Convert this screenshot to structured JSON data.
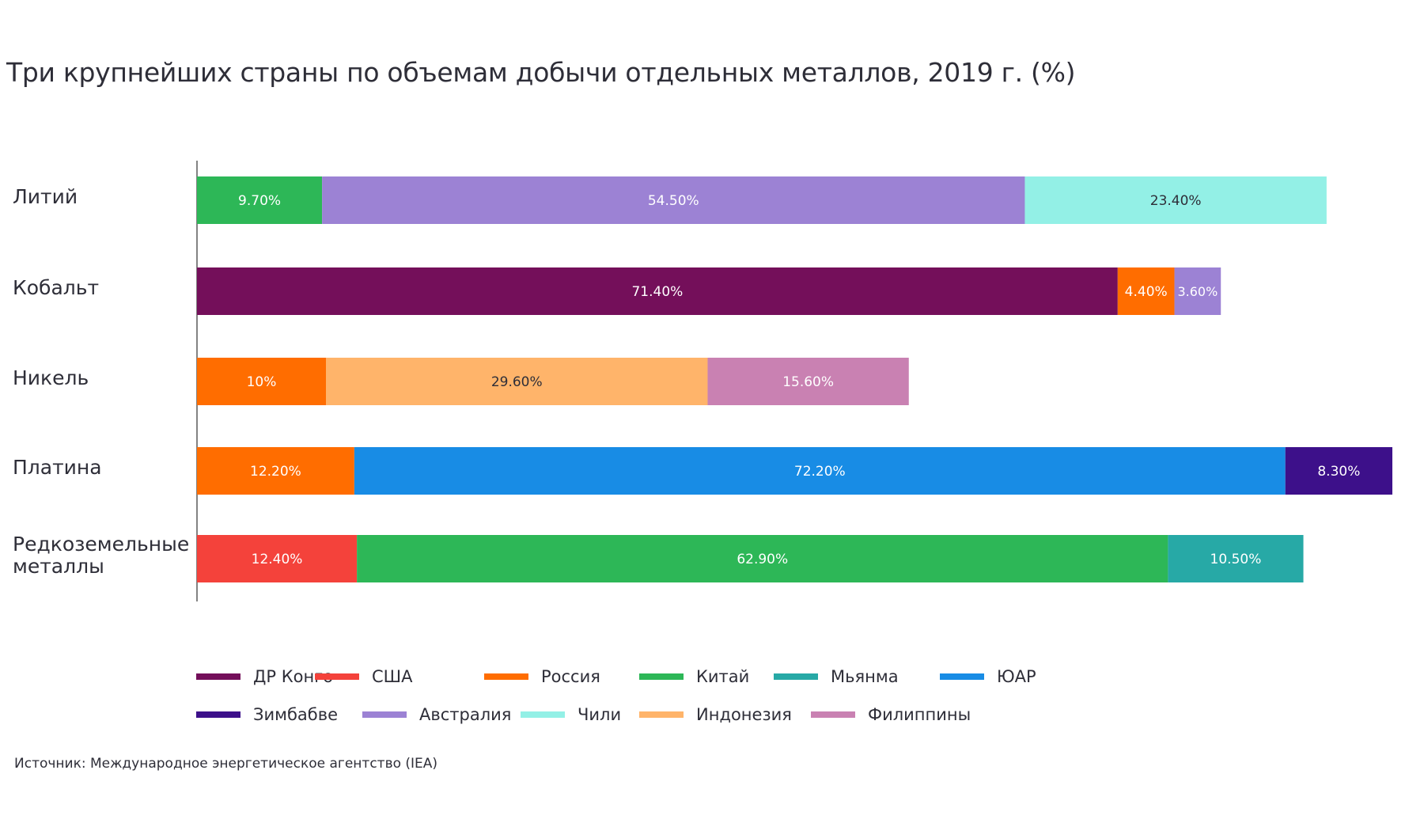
{
  "chart_data": {
    "type": "bar",
    "orientation": "horizontal",
    "stacked": true,
    "title": "Три крупнейших страны по объемам добычи отдельных металлов, 2019 г. (%)",
    "xlabel": "",
    "ylabel": "",
    "xlim": [
      0,
      100
    ],
    "grid": false,
    "legend_position": "bottom",
    "categories": [
      "Литий",
      "Кобальт",
      "Никель",
      "Платина",
      "Редкоземельные\nметаллы"
    ],
    "rows": [
      {
        "category": "Литий",
        "segments": [
          {
            "country": "Китай",
            "value": 9.7,
            "label": "9.70%"
          },
          {
            "country": "Австралия",
            "value": 54.5,
            "label": "54.50%"
          },
          {
            "country": "Чили",
            "value": 23.4,
            "label": "23.40%"
          }
        ]
      },
      {
        "category": "Кобальт",
        "segments": [
          {
            "country": "ДР Конго",
            "value": 71.4,
            "label": "71.40%"
          },
          {
            "country": "Россия",
            "value": 4.4,
            "label": "4.40%"
          },
          {
            "country": "Австралия",
            "value": 3.6,
            "label": "3.60%"
          }
        ]
      },
      {
        "category": "Никель",
        "segments": [
          {
            "country": "Россия",
            "value": 10,
            "label": "10%"
          },
          {
            "country": "Индонезия",
            "value": 29.6,
            "label": "29.60%"
          },
          {
            "country": "Филиппины",
            "value": 15.6,
            "label": "15.60%"
          }
        ]
      },
      {
        "category": "Платина",
        "segments": [
          {
            "country": "Россия",
            "value": 12.2,
            "label": "12.20%"
          },
          {
            "country": "ЮАР",
            "value": 72.2,
            "label": "72.20%"
          },
          {
            "country": "Зимбабве",
            "value": 8.3,
            "label": "8.30%"
          }
        ]
      },
      {
        "category": "Редкоземельные\nметаллы",
        "segments": [
          {
            "country": "США",
            "value": 12.4,
            "label": "12.40%"
          },
          {
            "country": "Китай",
            "value": 62.9,
            "label": "62.90%"
          },
          {
            "country": "Мьянма",
            "value": 10.5,
            "label": "10.50%"
          }
        ]
      }
    ],
    "series": [
      {
        "name": "ДР Конго",
        "color": "#740f5a",
        "label_color": "#ffffff"
      },
      {
        "name": "США",
        "color": "#f4423b",
        "label_color": "#ffffff"
      },
      {
        "name": "Россия",
        "color": "#ff6d00",
        "label_color": "#ffffff"
      },
      {
        "name": "Китай",
        "color": "#2db757",
        "label_color": "#ffffff"
      },
      {
        "name": "Мьянма",
        "color": "#27a9a6",
        "label_color": "#ffffff"
      },
      {
        "name": "ЮАР",
        "color": "#188ce5",
        "label_color": "#ffffff"
      },
      {
        "name": "Зимбабве",
        "color": "#3d108a",
        "label_color": "#ffffff"
      },
      {
        "name": "Австралия",
        "color": "#9c82d4",
        "label_color": "#ffffff"
      },
      {
        "name": "Чили",
        "color": "#93f0e6",
        "label_color": "#2e2e38"
      },
      {
        "name": "Индонезия",
        "color": "#ffb46a",
        "label_color": "#2e2e38"
      },
      {
        "name": "Филиппины",
        "color": "#c981b2",
        "label_color": "#ffffff"
      }
    ],
    "source": "Источник: Международное энергетическое агентство (IEA)"
  }
}
